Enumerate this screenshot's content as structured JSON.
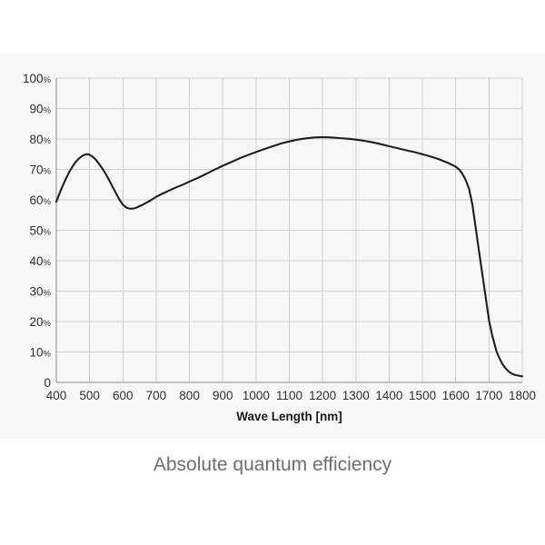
{
  "colors": {
    "page_bg": "#ffffff",
    "panel_bg": "#f7f7f7",
    "grid": "#cfcfcf",
    "axis": "#8c8c8c",
    "curve": "#1f1f1f",
    "tick_text": "#2f2f2f",
    "axis_title_text": "#1a1a1a",
    "caption_text": "#6b6d70"
  },
  "chart_data": {
    "type": "line",
    "title": "Absolute quantum efficiency",
    "xlabel": "Wave Length [nm]",
    "ylabel": "",
    "xlim": [
      400,
      1800
    ],
    "ylim": [
      0,
      100
    ],
    "grid": true,
    "legend": "none",
    "x_ticks": [
      400,
      500,
      600,
      700,
      800,
      900,
      1000,
      1100,
      1200,
      1300,
      1400,
      1500,
      1600,
      1700,
      1800
    ],
    "y_ticks": [
      0,
      10,
      20,
      30,
      40,
      50,
      60,
      70,
      80,
      90,
      100
    ],
    "y_tick_suffix": "%",
    "series": [
      {
        "name": "Absolute quantum efficiency",
        "points": [
          [
            400,
            59.4
          ],
          [
            410,
            62.2
          ],
          [
            420,
            64.8
          ],
          [
            430,
            67.2
          ],
          [
            440,
            69.4
          ],
          [
            450,
            71.2
          ],
          [
            460,
            72.7
          ],
          [
            470,
            73.8
          ],
          [
            480,
            74.6
          ],
          [
            490,
            75.0
          ],
          [
            495,
            75.0
          ],
          [
            500,
            74.8
          ],
          [
            510,
            74.1
          ],
          [
            520,
            73.0
          ],
          [
            530,
            71.6
          ],
          [
            540,
            70.0
          ],
          [
            550,
            68.2
          ],
          [
            560,
            66.2
          ],
          [
            570,
            64.1
          ],
          [
            580,
            62.0
          ],
          [
            590,
            60.0
          ],
          [
            600,
            58.4
          ],
          [
            610,
            57.5
          ],
          [
            620,
            57.1
          ],
          [
            630,
            57.1
          ],
          [
            640,
            57.4
          ],
          [
            650,
            57.9
          ],
          [
            660,
            58.4
          ],
          [
            670,
            59.0
          ],
          [
            680,
            59.6
          ],
          [
            690,
            60.3
          ],
          [
            700,
            61.0
          ],
          [
            720,
            62.1
          ],
          [
            740,
            63.1
          ],
          [
            760,
            64.1
          ],
          [
            780,
            65.0
          ],
          [
            800,
            66.0
          ],
          [
            825,
            67.2
          ],
          [
            850,
            68.5
          ],
          [
            875,
            69.9
          ],
          [
            900,
            71.2
          ],
          [
            925,
            72.4
          ],
          [
            950,
            73.6
          ],
          [
            975,
            74.7
          ],
          [
            1000,
            75.7
          ],
          [
            1025,
            76.7
          ],
          [
            1050,
            77.6
          ],
          [
            1075,
            78.5
          ],
          [
            1100,
            79.2
          ],
          [
            1125,
            79.8
          ],
          [
            1150,
            80.2
          ],
          [
            1175,
            80.5
          ],
          [
            1200,
            80.6
          ],
          [
            1225,
            80.5
          ],
          [
            1250,
            80.3
          ],
          [
            1275,
            80.1
          ],
          [
            1300,
            79.8
          ],
          [
            1325,
            79.4
          ],
          [
            1350,
            78.9
          ],
          [
            1375,
            78.3
          ],
          [
            1400,
            77.6
          ],
          [
            1425,
            77.0
          ],
          [
            1450,
            76.3
          ],
          [
            1475,
            75.7
          ],
          [
            1500,
            75.0
          ],
          [
            1525,
            74.2
          ],
          [
            1550,
            73.3
          ],
          [
            1575,
            72.2
          ],
          [
            1600,
            70.9
          ],
          [
            1610,
            70.0
          ],
          [
            1620,
            68.6
          ],
          [
            1630,
            66.5
          ],
          [
            1640,
            63.6
          ],
          [
            1650,
            58.5
          ],
          [
            1655,
            54.6
          ],
          [
            1661,
            50.0
          ],
          [
            1670,
            43.0
          ],
          [
            1680,
            35.6
          ],
          [
            1690,
            28.0
          ],
          [
            1700,
            20.3
          ],
          [
            1710,
            15.3
          ],
          [
            1723,
            10.0
          ],
          [
            1730,
            8.2
          ],
          [
            1740,
            6.1
          ],
          [
            1750,
            4.6
          ],
          [
            1760,
            3.5
          ],
          [
            1770,
            2.8
          ],
          [
            1780,
            2.4
          ],
          [
            1790,
            2.2
          ],
          [
            1800,
            2.0
          ]
        ]
      }
    ]
  }
}
